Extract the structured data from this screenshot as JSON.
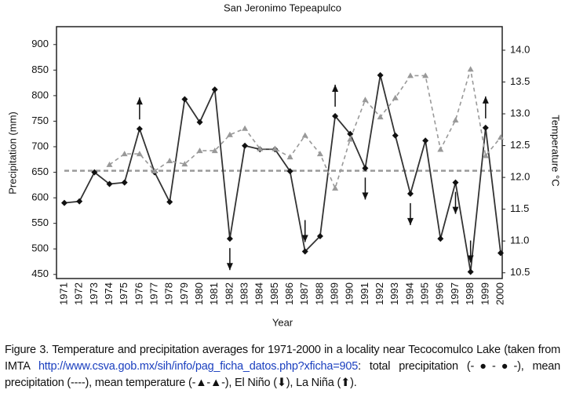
{
  "chart_data": {
    "type": "line",
    "title": "San Jeronimo Tepeapulco",
    "x_label": "Year",
    "y_label": "Precipitation (mm)",
    "y2_label": "Temperature °C",
    "categories": [
      "1971",
      "1972",
      "1973",
      "1974",
      "1975",
      "1976",
      "1977",
      "1978",
      "1979",
      "1980",
      "1981",
      "1982",
      "1983",
      "1984",
      "1985",
      "1986",
      "1987",
      "1988",
      "1989",
      "1990",
      "1991",
      "1992",
      "1993",
      "1994",
      "1995",
      "1996",
      "1997",
      "1998",
      "1999",
      "2000"
    ],
    "series": [
      {
        "name": "total precipitation",
        "color": "#333333",
        "axis": "y",
        "values": [
          590,
          593,
          650,
          627,
          630,
          735,
          650,
          592,
          793,
          748,
          812,
          520,
          702,
          695,
          695,
          652,
          495,
          525,
          760,
          725,
          658,
          840,
          722,
          608,
          712,
          520,
          630,
          455,
          737,
          492
        ]
      },
      {
        "name": "mean temperature",
        "color": "#999999",
        "axis": "y2",
        "values": [
          null,
          null,
          null,
          12.2,
          12.37,
          12.37,
          12.1,
          12.26,
          12.21,
          12.42,
          12.42,
          12.67,
          12.77,
          12.45,
          12.45,
          12.32,
          12.66,
          12.37,
          11.83,
          12.6,
          13.22,
          12.95,
          13.25,
          13.6,
          13.6,
          12.44,
          12.9,
          13.7,
          12.34,
          12.63
        ]
      }
    ],
    "mean_precipitation": 653,
    "el_nino": [
      "1982",
      "1987",
      "1991",
      "1994",
      "1997",
      "1998"
    ],
    "la_nina": [
      "1976",
      "1989",
      "1999"
    ],
    "ylim": [
      442,
      935
    ],
    "yticks": [
      450,
      500,
      550,
      600,
      650,
      700,
      750,
      800,
      850,
      900
    ],
    "y2lim": [
      10.41,
      14.37
    ],
    "y2ticks": [
      10.5,
      {
        "value": 11,
        "label": "11.0"
      },
      11.5,
      {
        "value": 12,
        "label": "12.0"
      },
      12.5,
      {
        "value": 13,
        "label": "13.0"
      },
      13.5,
      {
        "value": 14,
        "label": "14.0"
      }
    ]
  },
  "caption": {
    "text_before": "Figure 3. Temperature and precipitation averages for 1971-2000 in a locality near Tecocomulco Lake (taken from IMTA ",
    "link": "http://www.csva.gob.mx/sih/info/pag_ficha_datos.php?xficha=905",
    "text_after": ": total precipitation (-●-●-), mean precipitation (----), mean temperature (-▲-▲-), El Niño (⬇), La Niña (⬆)."
  }
}
